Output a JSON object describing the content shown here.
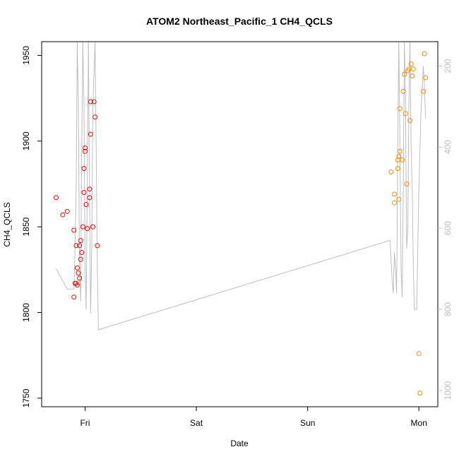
{
  "chart_data": {
    "type": "scatter",
    "title": "ATOM2 Northeast_Pacific_1 CH4_QCLS",
    "xlabel": "Date",
    "ylabel": "CH4_QCLS",
    "x_ticks": [
      "Fri",
      "Sat",
      "Sun",
      "Mon"
    ],
    "x_tick_days": [
      0,
      1,
      2,
      3
    ],
    "xlim_days": [
      -0.39,
      3.17
    ],
    "y_left_ticks": [
      1750,
      1800,
      1850,
      1900,
      1950
    ],
    "ylim_left": [
      1745,
      1958
    ],
    "y_right_ticks": [
      200,
      400,
      600,
      800,
      1000
    ],
    "ylim_right": [
      1040,
      140
    ],
    "colors": {
      "series_1": "#ff0000",
      "series_2": "#ff8c00",
      "altitude": "#bebebe",
      "axis": "#000000",
      "right_axis": "#bebebe"
    },
    "series": [
      {
        "points": [
          [
            -0.26,
            1867
          ],
          [
            -0.2,
            1857
          ],
          [
            -0.16,
            1859
          ],
          [
            -0.1,
            1848
          ],
          [
            -0.1,
            1809
          ],
          [
            -0.09,
            1817
          ],
          [
            -0.08,
            1817
          ],
          [
            -0.08,
            1839
          ],
          [
            -0.07,
            1826
          ],
          [
            -0.07,
            1816
          ],
          [
            -0.06,
            1823
          ],
          [
            -0.05,
            1820
          ],
          [
            -0.05,
            1839
          ],
          [
            -0.04,
            1842
          ],
          [
            -0.04,
            1831
          ],
          [
            -0.03,
            1835
          ],
          [
            -0.02,
            1850
          ],
          [
            -0.01,
            1870
          ],
          [
            -0.01,
            1884
          ],
          [
            0.0,
            1896
          ],
          [
            0.0,
            1894
          ],
          [
            0.01,
            1863
          ],
          [
            0.02,
            1849
          ],
          [
            0.04,
            1872
          ],
          [
            0.04,
            1867
          ],
          [
            0.05,
            1923
          ],
          [
            0.05,
            1904
          ],
          [
            0.07,
            1850
          ],
          [
            0.08,
            1923
          ],
          [
            0.09,
            1914
          ],
          [
            0.11,
            1839
          ]
        ]
      },
      {
        "points": [
          [
            2.75,
            1882
          ],
          [
            2.78,
            1864
          ],
          [
            2.78,
            1869
          ],
          [
            2.81,
            1889
          ],
          [
            2.81,
            1884
          ],
          [
            2.82,
            1891
          ],
          [
            2.82,
            1866
          ],
          [
            2.83,
            1919
          ],
          [
            2.83,
            1894
          ],
          [
            2.85,
            1889
          ],
          [
            2.86,
            1929
          ],
          [
            2.87,
            1939
          ],
          [
            2.88,
            1916
          ],
          [
            2.89,
            1875
          ],
          [
            2.9,
            1941
          ],
          [
            2.91,
            1942
          ],
          [
            2.92,
            1912
          ],
          [
            2.93,
            1945
          ],
          [
            2.94,
            1938
          ],
          [
            2.95,
            1942
          ],
          [
            3.0,
            1776
          ],
          [
            3.01,
            1753
          ],
          [
            3.04,
            1929
          ],
          [
            3.05,
            1951
          ],
          [
            3.06,
            1937
          ]
        ]
      }
    ],
    "altitude_line": [
      [
        -0.26,
        700
      ],
      [
        -0.16,
        750
      ],
      [
        -0.1,
        750
      ],
      [
        -0.09,
        650
      ],
      [
        -0.08,
        500
      ],
      [
        -0.07,
        120
      ],
      [
        -0.06,
        300
      ],
      [
        -0.05,
        700
      ],
      [
        -0.04,
        780
      ],
      [
        -0.03,
        400
      ],
      [
        -0.02,
        120
      ],
      [
        -0.01,
        300
      ],
      [
        0.0,
        700
      ],
      [
        0.01,
        800
      ],
      [
        0.02,
        500
      ],
      [
        0.03,
        120
      ],
      [
        0.04,
        500
      ],
      [
        0.05,
        810
      ],
      [
        0.06,
        650
      ],
      [
        0.07,
        300
      ],
      [
        0.09,
        120
      ],
      [
        0.1,
        400
      ],
      [
        0.11,
        700
      ],
      [
        0.12,
        850
      ],
      [
        2.74,
        630
      ],
      [
        2.75,
        680
      ],
      [
        2.76,
        730
      ],
      [
        2.77,
        760
      ],
      [
        2.78,
        660
      ],
      [
        2.79,
        700
      ],
      [
        2.8,
        760
      ],
      [
        2.81,
        400
      ],
      [
        2.82,
        120
      ],
      [
        2.83,
        400
      ],
      [
        2.84,
        700
      ],
      [
        2.85,
        770
      ],
      [
        2.86,
        500
      ],
      [
        2.87,
        120
      ],
      [
        2.88,
        300
      ],
      [
        2.89,
        650
      ],
      [
        2.9,
        600
      ],
      [
        2.91,
        300
      ],
      [
        2.92,
        120
      ],
      [
        2.93,
        400
      ],
      [
        2.94,
        500
      ],
      [
        2.95,
        700
      ],
      [
        2.96,
        800
      ],
      [
        2.97,
        800
      ],
      [
        2.98,
        800
      ],
      [
        3.0,
        500
      ],
      [
        3.02,
        300
      ],
      [
        3.04,
        200
      ],
      [
        3.05,
        250
      ],
      [
        3.06,
        330
      ]
    ]
  }
}
